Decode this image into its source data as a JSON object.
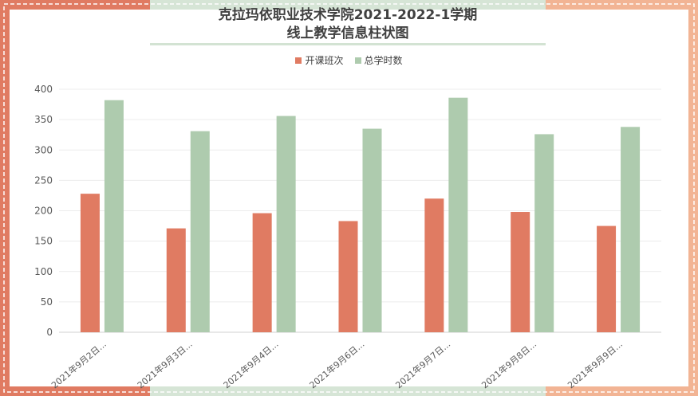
{
  "title_line1": "克拉玛依职业技术学院2021-2022-1学期",
  "title_line2": "线上教学信息柱状图",
  "colors": {
    "series1": "#e07b62",
    "series2": "#aecbae",
    "border_orange": "#e07b62",
    "border_peach": "#f2b494",
    "border_green": "#d6e5d6"
  },
  "chart_data": {
    "type": "bar",
    "title": "克拉玛依职业技术学院2021-2022-1学期 线上教学信息柱状图",
    "categories": [
      "2021年9月2日...",
      "2021年9月3日...",
      "2021年9月4日...",
      "2021年9月6日...",
      "2021年9月7日...",
      "2021年9月8日...",
      "2021年9月9日..."
    ],
    "series": [
      {
        "name": "开课班次",
        "values": [
          228,
          171,
          196,
          183,
          220,
          198,
          175
        ]
      },
      {
        "name": "总学时数",
        "values": [
          382,
          331,
          356,
          335,
          386,
          326,
          338
        ]
      }
    ],
    "yticks": [
      0,
      50,
      100,
      150,
      200,
      250,
      300,
      350,
      400
    ],
    "ylim": [
      0,
      400
    ],
    "legend": "top-center",
    "grid": true
  }
}
